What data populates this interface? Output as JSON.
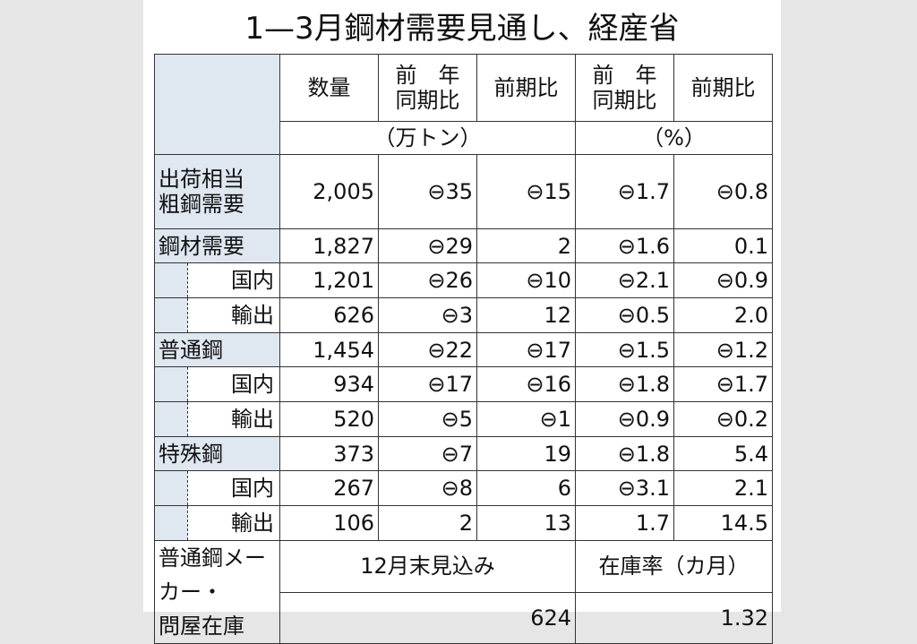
{
  "title": "1—3月鋼材需要見通し、経産省",
  "header": {
    "columns": [
      "数量",
      "前　年\n同期比",
      "前期比",
      "前　年\n同期比",
      "前期比"
    ],
    "units": [
      "（万トン）",
      "（%）"
    ]
  },
  "lead": {
    "label": "出荷相当\n粗鋼需要",
    "cells": [
      "2,005",
      "⊖35",
      "⊖15",
      "⊖1.7",
      "⊖0.8"
    ]
  },
  "groups": [
    {
      "label": "鋼材需要",
      "cells": [
        "1,827",
        "⊖29",
        "2",
        "⊖1.6",
        "0.1"
      ],
      "items": [
        {
          "label": "国内",
          "cells": [
            "1,201",
            "⊖26",
            "⊖10",
            "⊖2.1",
            "⊖0.9"
          ]
        },
        {
          "label": "輸出",
          "cells": [
            "626",
            "⊖3",
            "12",
            "⊖0.5",
            "2.0"
          ]
        }
      ]
    },
    {
      "label": "普通鋼",
      "cells": [
        "1,454",
        "⊖22",
        "⊖17",
        "⊖1.5",
        "⊖1.2"
      ],
      "items": [
        {
          "label": "国内",
          "cells": [
            "934",
            "⊖17",
            "⊖16",
            "⊖1.8",
            "⊖1.7"
          ]
        },
        {
          "label": "輸出",
          "cells": [
            "520",
            "⊖5",
            "⊖1",
            "⊖0.9",
            "⊖0.2"
          ]
        }
      ]
    },
    {
      "label": "特殊鋼",
      "cells": [
        "373",
        "⊖7",
        "19",
        "⊖1.8",
        "5.4"
      ],
      "items": [
        {
          "label": "国内",
          "cells": [
            "267",
            "⊖8",
            "6",
            "⊖3.1",
            "2.1"
          ]
        },
        {
          "label": "輸出",
          "cells": [
            "106",
            "2",
            "13",
            "1.7",
            "14.5"
          ]
        }
      ]
    }
  ],
  "inventory": {
    "label": "普通鋼メーカー・\n問屋在庫",
    "period": "12月末見込み",
    "ratio_label": "在庫率（カ月）",
    "amount": "624",
    "ratio": "1.32"
  }
}
